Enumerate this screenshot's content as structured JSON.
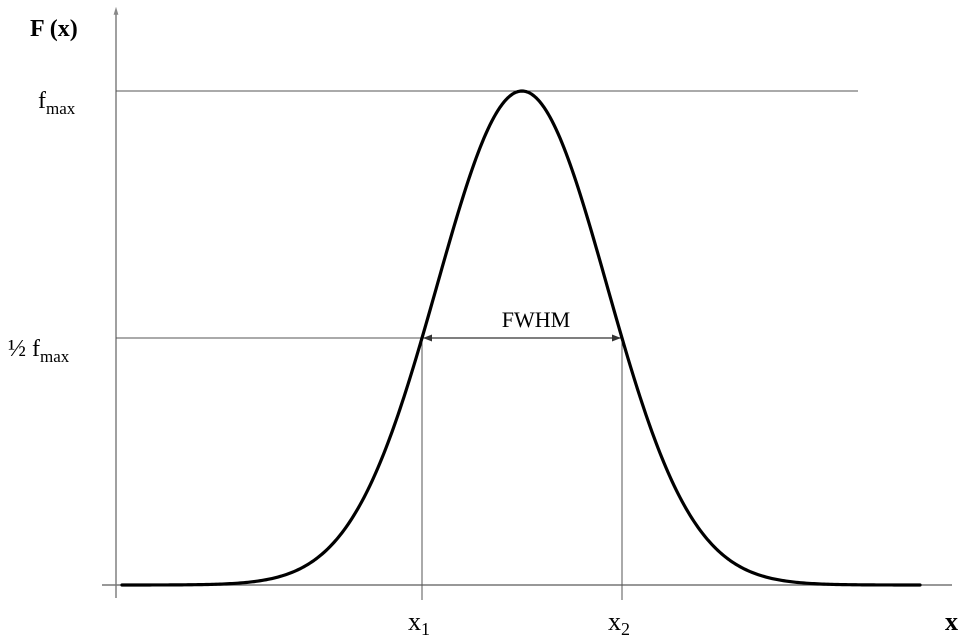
{
  "diagram": {
    "y_axis_label": "F (x)",
    "x_axis_label": "x",
    "fmax_label": {
      "base": "f",
      "sub": "max"
    },
    "half_fmax_label": {
      "prefix": "½ ",
      "base": "f",
      "sub": "max"
    },
    "fwhm_label": "FWHM",
    "x1_label": {
      "base": "x",
      "sub": "1"
    },
    "x2_label": {
      "base": "x",
      "sub": "2"
    },
    "colors": {
      "curve": "#000000",
      "guide_lines": "#555555",
      "axes": "#777777"
    }
  }
}
